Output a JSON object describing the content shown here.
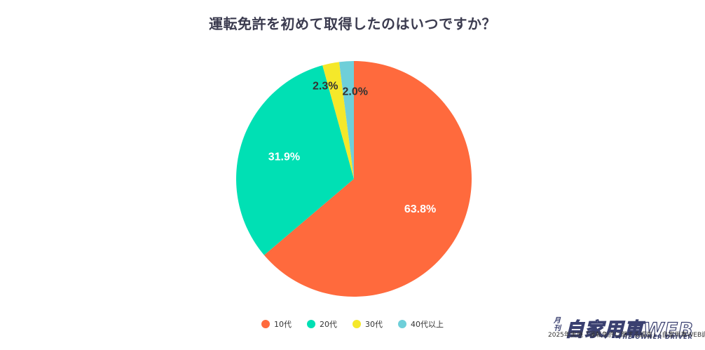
{
  "chart_data": {
    "type": "pie",
    "title": "運転免許を初めて取得したのはいつですか？",
    "categories": [
      "10代",
      "20代",
      "30代",
      "40代以上"
    ],
    "values": [
      63.8,
      31.9,
      2.3,
      2.0
    ],
    "value_labels": [
      "63.8%",
      "31.9%",
      "2.3%",
      "2.0%"
    ],
    "colors": [
      "#ff6a3d",
      "#00e0b4",
      "#f5e82a",
      "#6ecfd9"
    ],
    "label_colors": [
      "#ffffff",
      "#ffffff",
      "#333333",
      "#333333"
    ],
    "start_angle_deg": 0,
    "direction": "clockwise",
    "legend_position": "bottom-center"
  },
  "watermark": {
    "prefix": "月刊",
    "brand": "自家用車WEB",
    "tagline": "THE OWNER DRIVER"
  },
  "source_note": "2025年実施「運転免許に関する調査」（自家用車WEB調べ）"
}
